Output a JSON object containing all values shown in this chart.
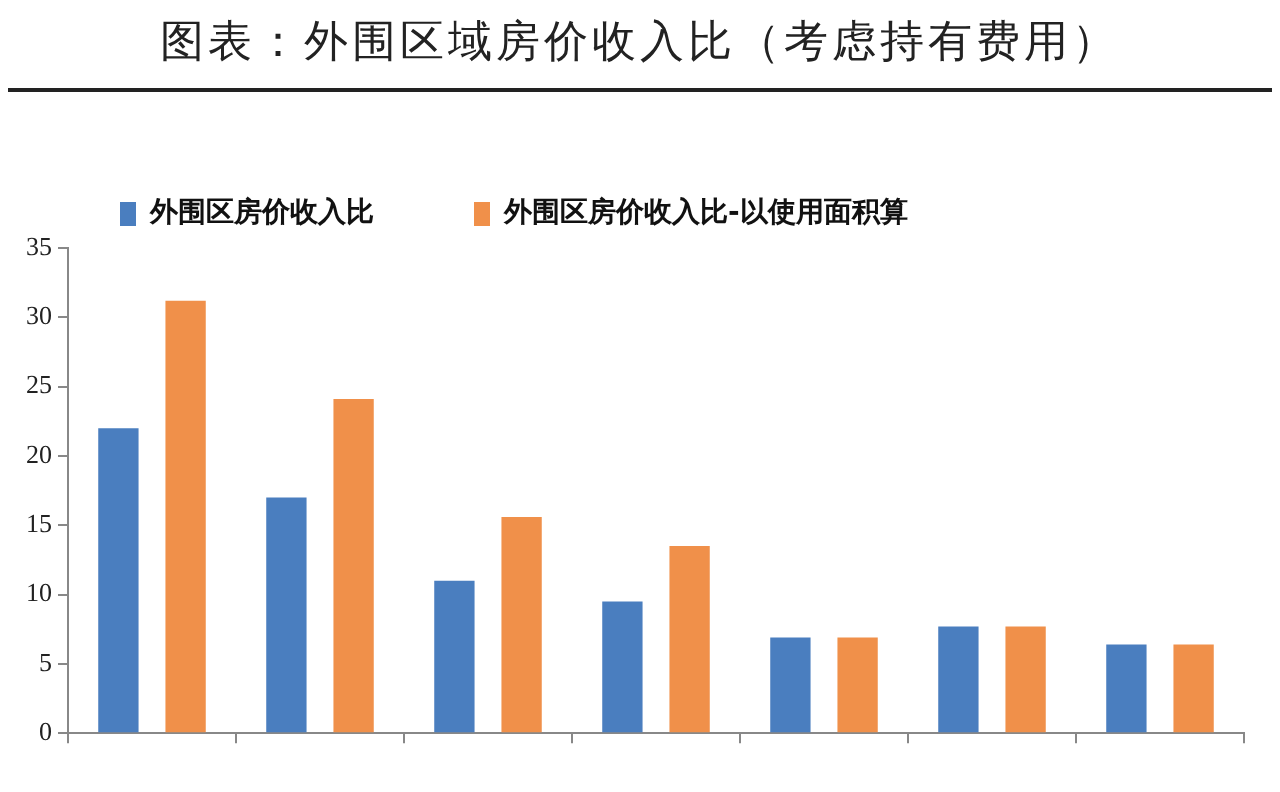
{
  "chart_data": {
    "type": "bar",
    "title": "图表：外围区域房价收入比（考虑持有费用）",
    "categories": [
      null,
      null,
      null,
      null,
      null,
      null,
      null
    ],
    "series": [
      {
        "name": "外围区房价收入比",
        "color": "#4a7ebf",
        "values": [
          22,
          17,
          11,
          9.5,
          6.9,
          7.7,
          6.4
        ]
      },
      {
        "name": "外围区房价收入比-以使用面积算",
        "color": "#f0904a",
        "values": [
          31.2,
          24.1,
          15.6,
          13.5,
          6.9,
          7.7,
          6.4
        ]
      }
    ],
    "ylim": [
      0,
      35
    ],
    "yticks": [
      0,
      5,
      10,
      15,
      20,
      25,
      30,
      35
    ],
    "grid": false,
    "legend": "top"
  }
}
